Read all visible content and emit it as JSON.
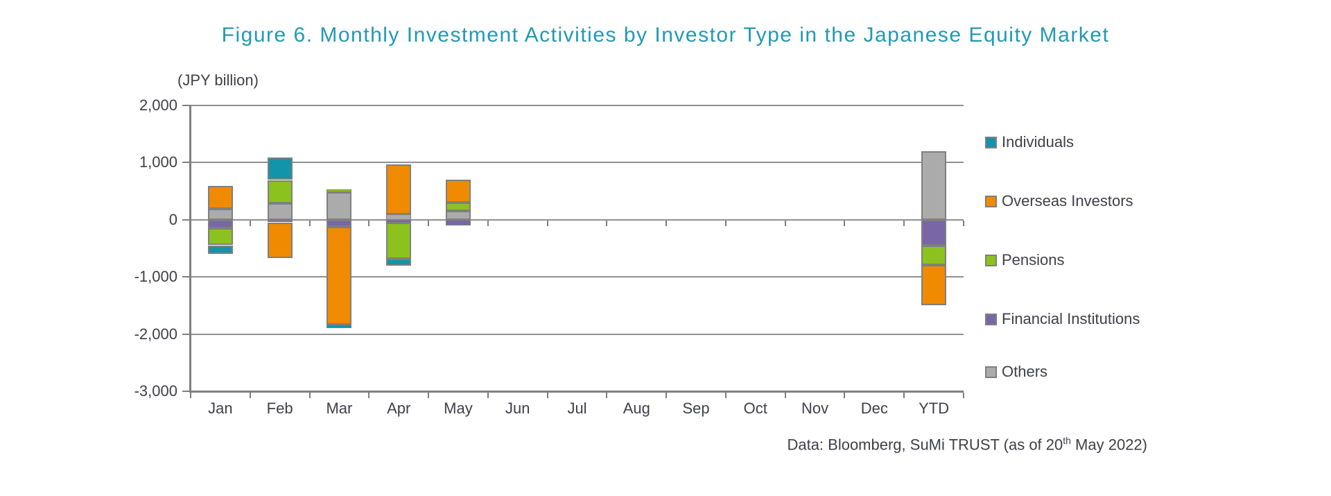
{
  "page": {
    "accent_color": "#2099b5",
    "text_color": "#3f4048",
    "footer_prefix": "Data: Bloomberg, SuMi TRUST (as of 20",
    "footer_sup": "th",
    "footer_suffix": " May 2022)"
  },
  "chart_data": {
    "type": "bar",
    "stacked": true,
    "title": "Figure 6. Monthly Investment Activities by Investor Type in the Japanese Equity Market",
    "unit_label": "(JPY billion)",
    "categories": [
      "Jan",
      "Feb",
      "Mar",
      "Apr",
      "May",
      "Jun",
      "Jul",
      "Aug",
      "Sep",
      "Oct",
      "Nov",
      "Dec",
      "YTD"
    ],
    "series": [
      {
        "name": "Individuals",
        "color": "#1295ab",
        "values": [
          -150,
          390,
          -60,
          -120,
          0,
          0,
          0,
          0,
          0,
          0,
          0,
          0,
          0
        ]
      },
      {
        "name": "Overseas Investors",
        "color": "#f08a00",
        "values": [
          400,
          -630,
          -1715,
          870,
          400,
          0,
          0,
          0,
          0,
          0,
          0,
          0,
          -700
        ]
      },
      {
        "name": "Pensions",
        "color": "#8cc21e",
        "values": [
          -300,
          400,
          50,
          -630,
          150,
          0,
          0,
          0,
          0,
          0,
          0,
          0,
          -335
        ]
      },
      {
        "name": "Financial Institutions",
        "color": "#7866a6",
        "values": [
          -145,
          -45,
          -120,
          -50,
          -95,
          0,
          0,
          0,
          0,
          0,
          0,
          0,
          -455
        ]
      },
      {
        "name": "Others",
        "color": "#ababab",
        "values": [
          190,
          295,
          485,
          95,
          155,
          0,
          0,
          0,
          0,
          0,
          0,
          0,
          1200
        ]
      }
    ],
    "yticks": [
      2000,
      1000,
      0,
      -1000,
      -2000,
      -3000
    ],
    "ytick_labels": [
      "2,000",
      "1,000",
      "0",
      "-1,000",
      "-2,000",
      "-3,000"
    ],
    "ylim": [
      -3000,
      2000
    ],
    "grid": true,
    "legend_position": "right",
    "stack_order_from_axis": [
      "Others",
      "Financial Institutions",
      "Pensions",
      "Overseas Investors",
      "Individuals"
    ]
  }
}
